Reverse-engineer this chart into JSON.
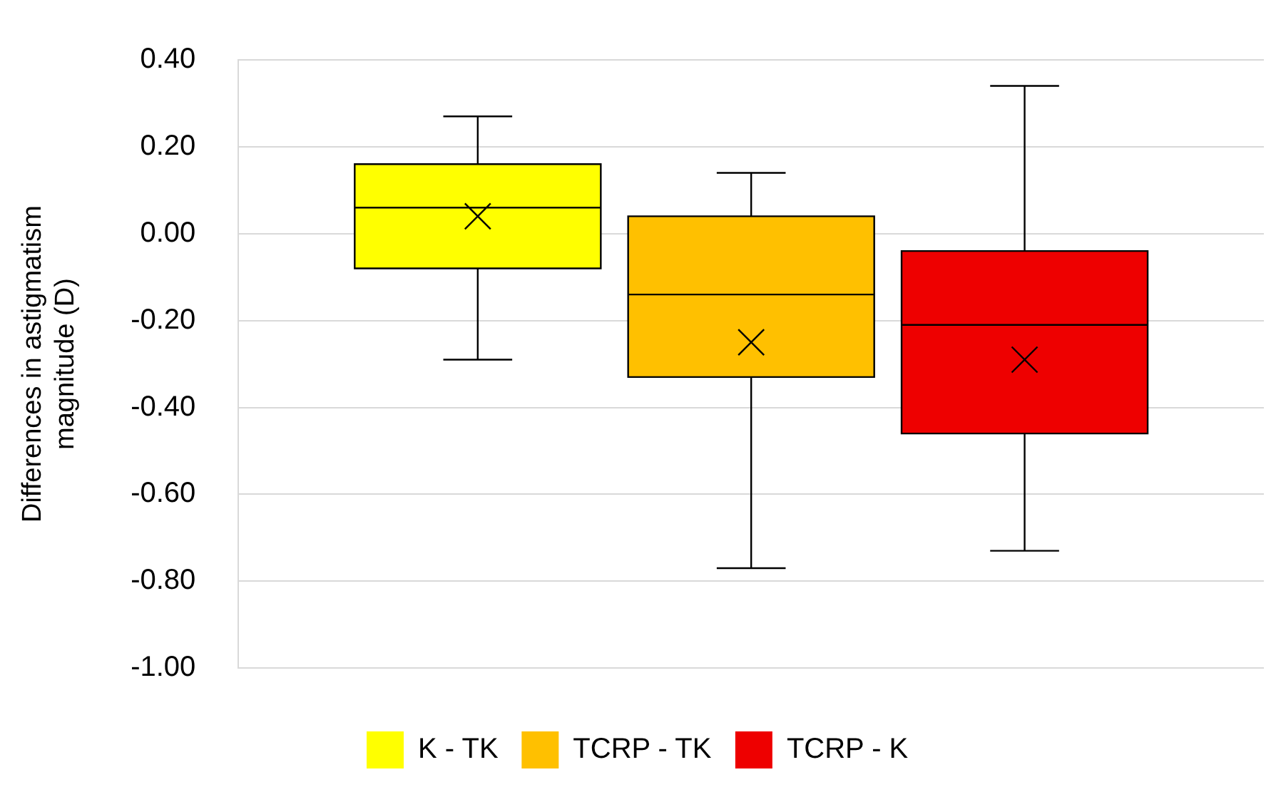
{
  "chart_data": {
    "type": "box",
    "ylabel": "Differences in astigmatism magnitude (D)",
    "categories": [
      null
    ],
    "ylim": [
      -1,
      0.4
    ],
    "yticks": [
      {
        "value": -1,
        "label": "-1.00"
      },
      {
        "value": -0.8,
        "label": "-0.80"
      },
      {
        "value": -0.6,
        "label": "-0.60"
      },
      {
        "value": -0.4,
        "label": "-0.40"
      },
      {
        "value": -0.2,
        "label": "-0.20"
      },
      {
        "value": 0,
        "label": "0.00"
      },
      {
        "value": 0.2,
        "label": "0.20"
      },
      {
        "value": 0.4,
        "label": "0.40"
      }
    ],
    "grid": "y",
    "legend": "bottom",
    "series": [
      {
        "name": "K - TK",
        "color": "#ffff00",
        "boxes": [
          {
            "low": -0.29,
            "q1": -0.08,
            "median": 0.06,
            "q3": 0.16,
            "high": 0.27,
            "mean": 0.04
          }
        ]
      },
      {
        "name": "TCRP - TK",
        "color": "#ffc000",
        "boxes": [
          {
            "low": -0.77,
            "q1": -0.33,
            "median": -0.14,
            "q3": 0.04,
            "high": 0.14,
            "mean": -0.25
          }
        ]
      },
      {
        "name": "TCRP - K",
        "color": "#ee0000",
        "boxes": [
          {
            "low": -0.73,
            "q1": -0.46,
            "median": -0.21,
            "q3": -0.04,
            "high": 0.34,
            "mean": -0.29
          }
        ]
      }
    ]
  }
}
